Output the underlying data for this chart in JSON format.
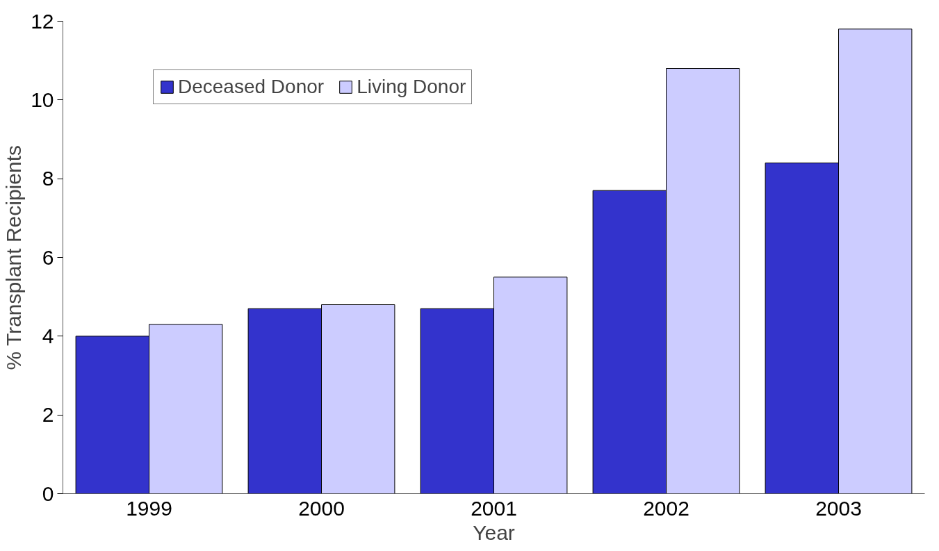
{
  "chart_data": {
    "type": "bar",
    "xlabel": "Year",
    "ylabel": "% Transplant Recipients",
    "categories": [
      "1999",
      "2000",
      "2001",
      "2002",
      "2003"
    ],
    "series": [
      {
        "name": "Deceased Donor",
        "color": "#3333cc",
        "values": [
          4.0,
          4.7,
          4.7,
          7.7,
          8.4
        ]
      },
      {
        "name": "Living Donor",
        "color": "#ccccff",
        "values": [
          4.3,
          4.8,
          5.5,
          10.8,
          11.8
        ]
      }
    ],
    "ylim": [
      0,
      12
    ],
    "yticks": [
      0,
      2,
      4,
      6,
      8,
      10,
      12
    ],
    "grid": false,
    "legend": "top left"
  }
}
